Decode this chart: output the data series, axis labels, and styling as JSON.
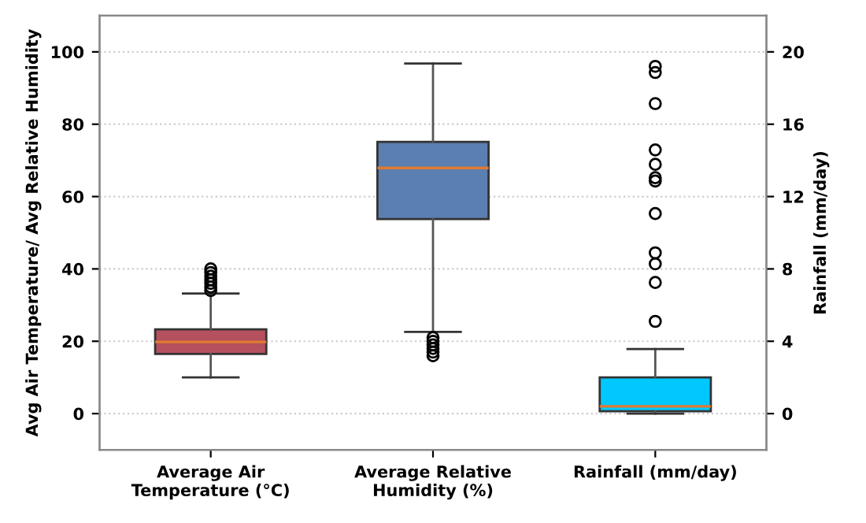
{
  "chart_data": {
    "type": "box",
    "ylabel": "Avg Air Temperature/ Avg Relative Humidity",
    "y2label": "Rainfall (mm/day)",
    "categories": [
      "Average Air\nTemperature (°C)",
      "Average Relative\nHumidity (%)",
      "Rainfall (mm/day)"
    ],
    "series": [
      {
        "colors": [
          "#b5505f",
          "#5b7fb0",
          null
        ],
        "boxes": [
          {
            "low": 10,
            "q1": 16.5,
            "median": 19.8,
            "q3": 23.3,
            "high": 33.2,
            "outliers": [
              34,
              35,
              36,
              37,
              38,
              39,
              40
            ]
          },
          {
            "low": 22.6,
            "q1": 53.8,
            "median": 67.9,
            "q3": 75.1,
            "high": 96.8,
            "outliers": [
              16,
              17,
              18,
              19,
              20,
              21
            ]
          },
          null
        ]
      },
      {
        "axis": "y2",
        "colors": [
          null,
          null,
          "#00c8ff"
        ],
        "boxes": [
          null,
          null,
          {
            "low": 0,
            "q1": 0.13,
            "median": 0.4,
            "q3": 2.0,
            "high": 3.57,
            "outliers": [
              5.1,
              7.25,
              8.28,
              8.89,
              11.06,
              12.86,
              13.04,
              13.78,
              14.58,
              17.14,
              18.86,
              19.2
            ]
          }
        ]
      }
    ],
    "ylim": [
      -10,
      110
    ],
    "yticks": [
      0,
      20,
      40,
      60,
      80,
      100
    ],
    "y2lim": [
      -2,
      22
    ],
    "y2ticks": [
      0,
      4,
      8,
      12,
      16,
      20
    ],
    "grid": "y"
  }
}
